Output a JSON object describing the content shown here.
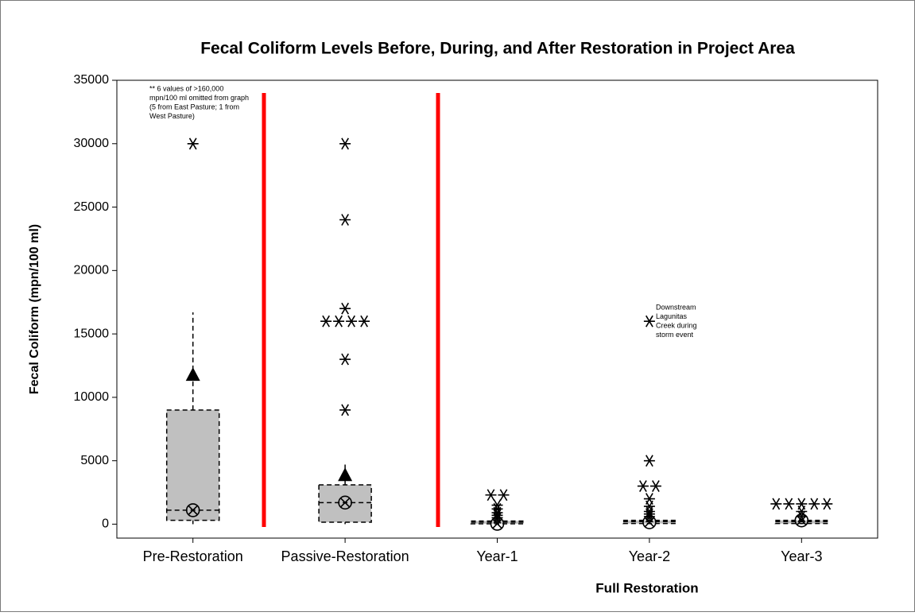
{
  "chart_data": {
    "type": "box",
    "title": "Fecal Coliform Levels Before, During, and After Restoration in Project Area",
    "y_label": "Fecal Coliform (mpn/100 ml)",
    "x_label": "Full Restoration",
    "categories": [
      "Pre-Restoration",
      "Passive-Restoration",
      "Year-1",
      "Year-2",
      "Year-3"
    ],
    "boxes": [
      {
        "q1": 300,
        "median": 1100,
        "q3": 9000,
        "whisker_low": 0,
        "whisker_high": 16700,
        "mean": 1100,
        "triangle": 11800,
        "outliers": [
          30000
        ]
      },
      {
        "q1": 150,
        "median": 1700,
        "q3": 3100,
        "whisker_low": 0,
        "whisker_high": 4700,
        "mean": 1700,
        "triangle": 3900,
        "outliers": [
          9000,
          13000,
          16000,
          16000,
          16000,
          16000,
          17000,
          24000,
          30000
        ]
      },
      {
        "q1": 30,
        "median": 150,
        "q3": 250,
        "whisker_low": 0,
        "whisker_high": 400,
        "mean": 30,
        "outliers": [
          500,
          700,
          900,
          1200,
          1500,
          2300,
          2300
        ]
      },
      {
        "q1": 50,
        "median": 200,
        "q3": 300,
        "whisker_low": 0,
        "whisker_high": 500,
        "mean": 150,
        "outliers": [
          600,
          800,
          1000,
          1400,
          2000,
          3000,
          3000,
          5000,
          16000
        ]
      },
      {
        "q1": 50,
        "median": 200,
        "q3": 300,
        "whisker_low": 0,
        "whisker_high": 450,
        "mean": 300,
        "outliers": [
          600,
          1000,
          1600,
          1600,
          1600,
          1600,
          1600
        ]
      }
    ],
    "annotations": [
      [
        "** 6 values of >160,000",
        "mpn/100 ml omitted from graph",
        "(5 from East Pasture; 1 from",
        "West Pasture)"
      ],
      [
        "Downstream",
        "Lagunitas",
        "Creek during",
        "storm event"
      ]
    ],
    "box_color": "#c0c0c0",
    "divider_color": "#ff0000",
    "ylim": [
      -1100,
      35000
    ],
    "yticks": [
      0,
      5000,
      10000,
      15000,
      20000,
      25000,
      30000,
      35000
    ]
  }
}
